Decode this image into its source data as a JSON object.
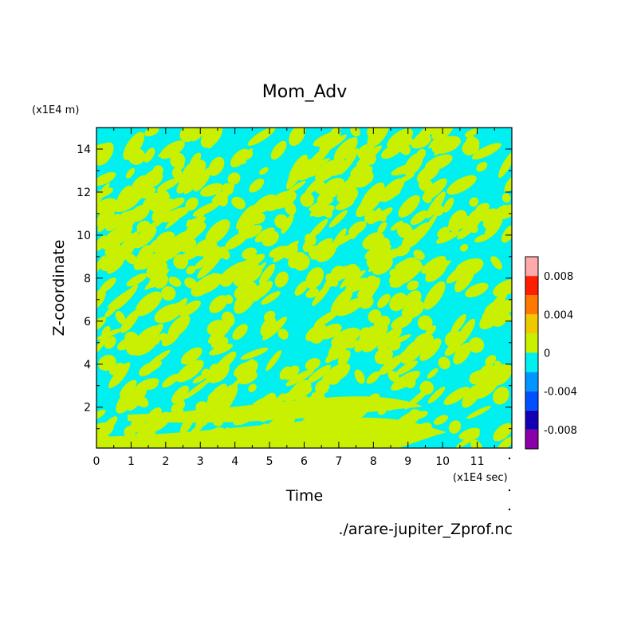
{
  "chart_data": {
    "type": "heatmap",
    "title": "Mom_Adv",
    "xlabel": "Time",
    "ylabel": "Z-coordinate",
    "x_unit": "(x1E4 sec)",
    "y_unit": "(x1E4 m)",
    "source_file": "./arare-jupiter_Zprof.nc",
    "xlim": [
      0,
      12
    ],
    "ylim": [
      0.1,
      15
    ],
    "x_ticks": [
      {
        "value": 0,
        "label": "0"
      },
      {
        "value": 1,
        "label": "1"
      },
      {
        "value": 2,
        "label": "2"
      },
      {
        "value": 3,
        "label": "3"
      },
      {
        "value": 4,
        "label": "4"
      },
      {
        "value": 5,
        "label": "5"
      },
      {
        "value": 6,
        "label": "6"
      },
      {
        "value": 7,
        "label": "7"
      },
      {
        "value": 8,
        "label": "8"
      },
      {
        "value": 9,
        "label": "9"
      },
      {
        "value": 10,
        "label": "10"
      },
      {
        "value": 11,
        "label": "11"
      }
    ],
    "y_ticks": [
      {
        "value": 2,
        "label": "2"
      },
      {
        "value": 4,
        "label": "4"
      },
      {
        "value": 6,
        "label": "6"
      },
      {
        "value": 8,
        "label": "8"
      },
      {
        "value": 10,
        "label": "10"
      },
      {
        "value": 12,
        "label": "12"
      },
      {
        "value": 14,
        "label": "14"
      }
    ],
    "colorbar": {
      "levels": [
        -0.01,
        -0.008,
        -0.006,
        -0.004,
        -0.002,
        0,
        0.002,
        0.004,
        0.006,
        0.008,
        0.01
      ],
      "colors": [
        "#8a00a8",
        "#1400b4",
        "#0050ff",
        "#0096ff",
        "#00f0f0",
        "#c8f000",
        "#f0c800",
        "#ff7800",
        "#ff1e00",
        "#ffaaaa"
      ],
      "tick_labels": [
        {
          "value": 0.008,
          "label": "0.008"
        },
        {
          "value": 0.004,
          "label": "0.004"
        },
        {
          "value": 0,
          "label": "0"
        },
        {
          "value": -0.004,
          "label": "-0.004"
        },
        {
          "value": -0.008,
          "label": "-0.008"
        }
      ]
    },
    "grid": false,
    "pattern_note": "Field alternates between the 0 to 0.002 band (yellow-green) and the -0.002 to 0 band (cyan)."
  }
}
